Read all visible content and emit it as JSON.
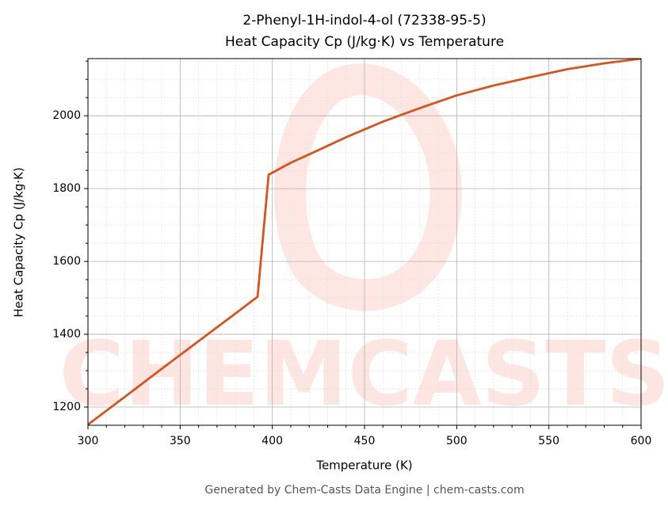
{
  "chart_data": {
    "type": "line",
    "title": "2-Phenyl-1H-indol-4-ol (72338-95-5)",
    "subtitle": "Heat Capacity Cp (J/kg·K) vs Temperature",
    "x_label": "Temperature (K)",
    "y_label": "Heat Capacity Cp (J/kg·K)",
    "watermark": "CHEMCASTS",
    "footer": "Generated by Chem-Casts Data Engine | chem-casts.com",
    "x": [
      300,
      320,
      340,
      360,
      380,
      392,
      398,
      410,
      420,
      440,
      460,
      480,
      500,
      520,
      540,
      560,
      580,
      600
    ],
    "series": [
      {
        "name": "Cp",
        "color": "#d9531e",
        "values": [
          1152,
          1228,
          1305,
          1381,
          1457,
          1503,
          1838,
          1871,
          1894,
          1941,
          1984,
          2021,
          2056,
          2083,
          2106,
          2128,
          2144,
          2157
        ]
      }
    ],
    "xlim": [
      300,
      600
    ],
    "xticks": [
      300,
      350,
      400,
      450,
      500,
      550,
      600
    ],
    "ylim": [
      1150,
      2157
    ],
    "yticks": [
      1200,
      1400,
      1600,
      1800,
      2000
    ],
    "xticks_minor": [
      310,
      320,
      330,
      340,
      360,
      370,
      380,
      390,
      410,
      420,
      430,
      440,
      460,
      470,
      480,
      490,
      510,
      520,
      530,
      540,
      560,
      570,
      580,
      590
    ],
    "yticks_minor": [
      1250,
      1300,
      1350,
      1450,
      1500,
      1550,
      1650,
      1700,
      1750,
      1850,
      1900,
      1950,
      2050,
      2100,
      2150
    ],
    "grid": true
  }
}
